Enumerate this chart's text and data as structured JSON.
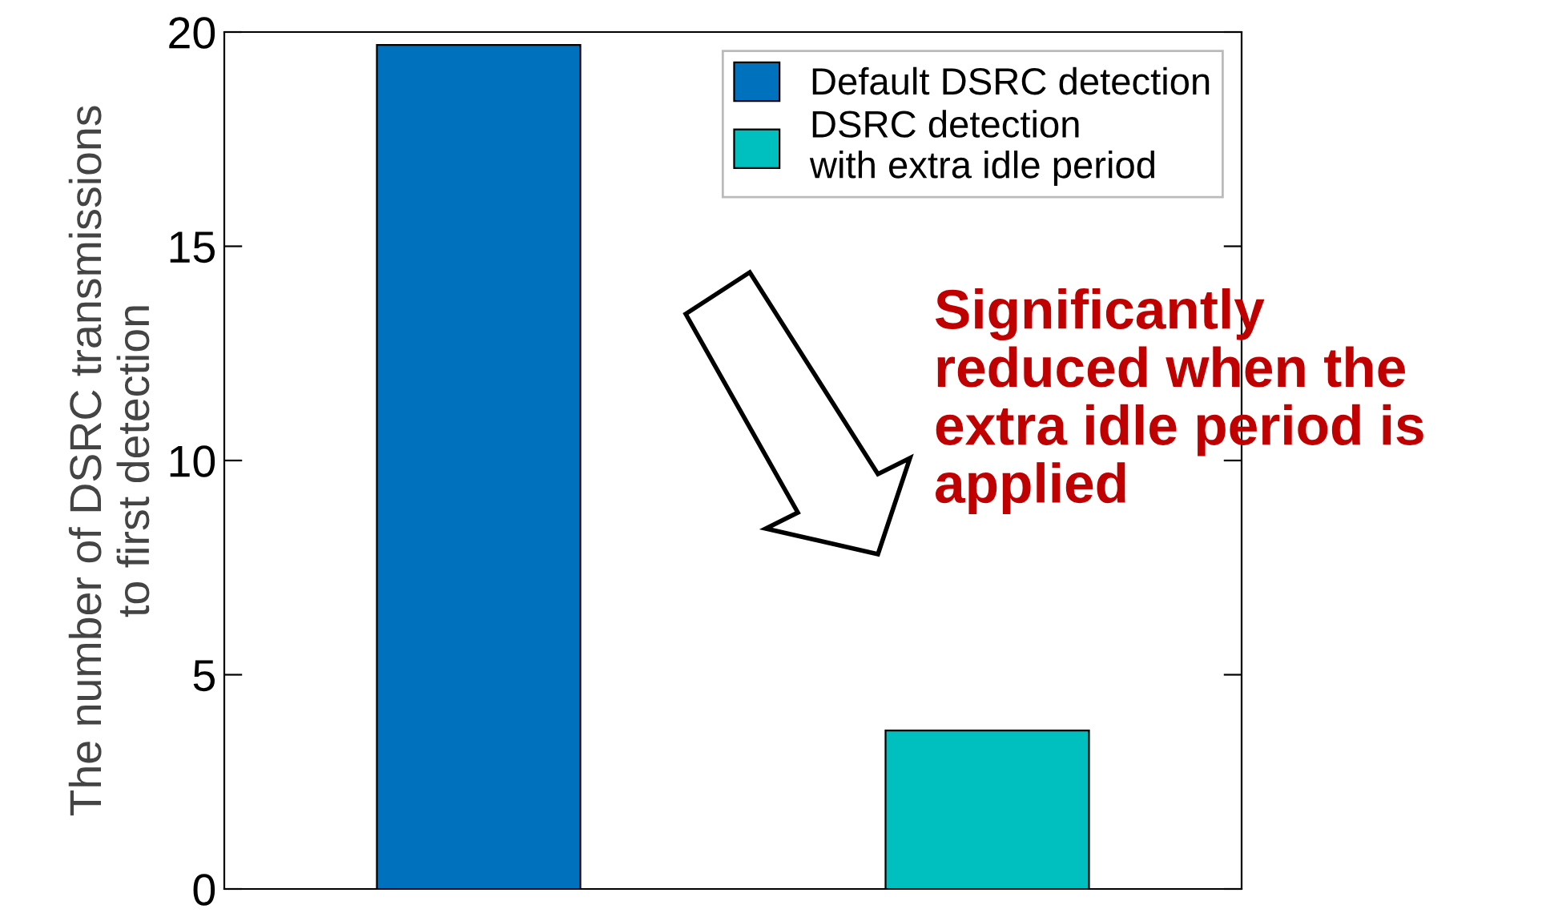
{
  "chart_data": {
    "type": "bar",
    "ylabel": "The number of DSRC transmissions\nto first detection",
    "categories": [
      null,
      null
    ],
    "series": [
      {
        "name": "Default DSRC detection",
        "color": "#0072bd",
        "values": [
          19.7,
          null
        ]
      },
      {
        "name": "DSRC detection\nwith extra idle period",
        "color": "#00bfbf",
        "values": [
          null,
          3.7
        ]
      }
    ],
    "ylim": [
      0,
      20
    ],
    "yticks": [
      0,
      5,
      10,
      15,
      20
    ],
    "tick_labels": "y",
    "grid": false,
    "legend": "top right",
    "annotations": [
      "Significantly\nreduced when the\nextra idle period is\napplied"
    ]
  }
}
